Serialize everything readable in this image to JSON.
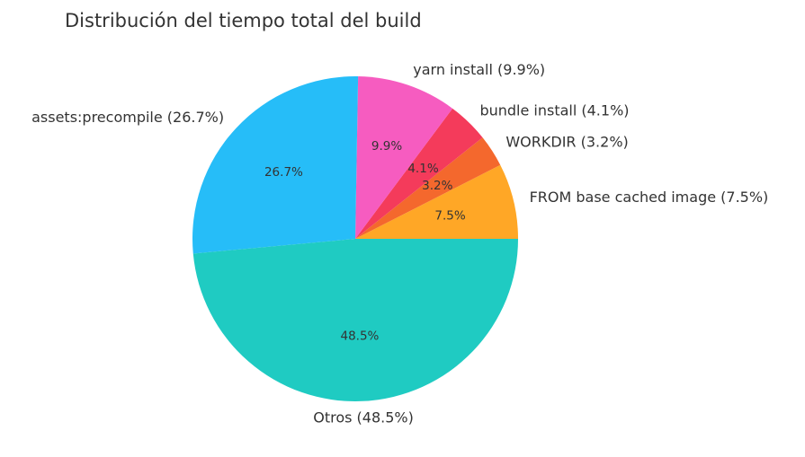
{
  "chart_data": {
    "type": "pie",
    "title": "Distribución del tiempo total del build",
    "start_angle_deg": 0,
    "direction": "counterclockwise",
    "slices": [
      {
        "label": "FROM base cached image (7.5%)",
        "value": 7.5,
        "pct_label": "7.5%",
        "color": "#FFA726"
      },
      {
        "label": "WORKDIR (3.2%)",
        "value": 3.2,
        "pct_label": "3.2%",
        "color": "#F4682D"
      },
      {
        "label": "bundle install (4.1%)",
        "value": 4.1,
        "pct_label": "4.1%",
        "color": "#F43B5B"
      },
      {
        "label": "yarn install (9.9%)",
        "value": 9.9,
        "pct_label": "9.9%",
        "color": "#F65CC0"
      },
      {
        "label": "assets:precompile (26.7%)",
        "value": 26.7,
        "pct_label": "26.7%",
        "color": "#26BDF8"
      },
      {
        "label": "Otros (48.5%)",
        "value": 48.5,
        "pct_label": "48.5%",
        "color": "#1FCBC2"
      }
    ]
  }
}
